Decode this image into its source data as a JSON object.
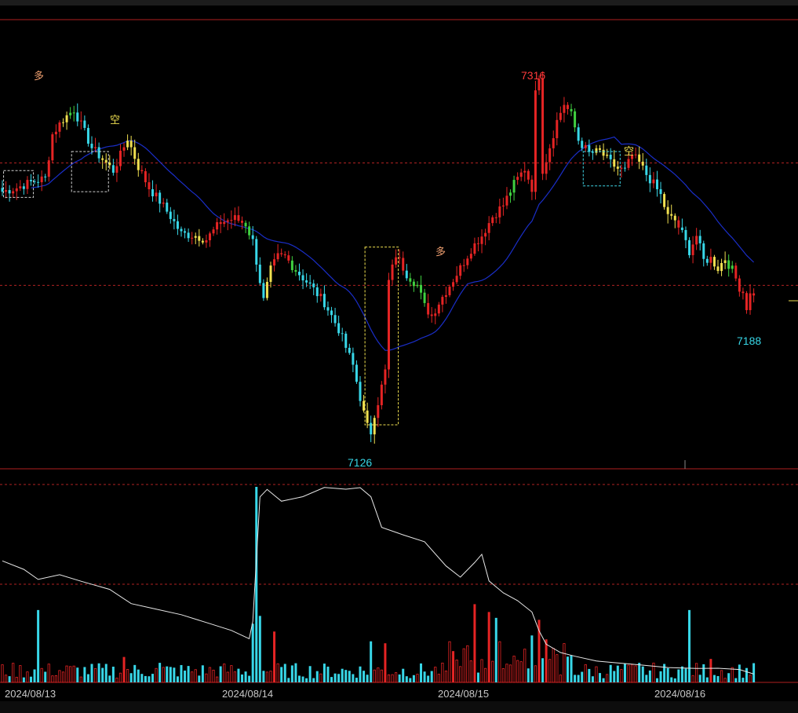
{
  "chart_data": {
    "type": "candlestick",
    "price_range": [
      7110,
      7345
    ],
    "reference_levels": [
      7270,
      7206
    ],
    "annotations": {
      "high": {
        "label": "7316",
        "value": 7316,
        "color": "#ff3b3b"
      },
      "low": {
        "label": "7126",
        "value": 7126,
        "color": "#37d6e6"
      },
      "last_low": {
        "label": "7188",
        "value": 7188,
        "color": "#37d6e6"
      }
    },
    "signals": [
      {
        "label": "多",
        "kind": "long",
        "value": 7302
      },
      {
        "label": "空",
        "kind": "short",
        "value": 7267
      },
      {
        "label": "多",
        "kind": "long",
        "value": 7243
      },
      {
        "label": "空",
        "kind": "short",
        "value": 7258
      }
    ],
    "x_labels": [
      "2024/08/13",
      "2024/08/14",
      "2024/08/15",
      "2024/08/16"
    ],
    "colors": {
      "up": "#e52424",
      "down": "#38d7e8",
      "green": "#40d040",
      "yellow": "#f0e050",
      "ma": "#1a2ec8",
      "ref": "#b22222",
      "frame": "#b02020",
      "box_white": "#d0d0d0",
      "box_yellow": "#f0e050",
      "box_cyan": "#40d8e8",
      "oi_line": "#e8e8e8"
    },
    "close_anchors": [
      [
        0,
        7255
      ],
      [
        4,
        7257
      ],
      [
        8,
        7260
      ],
      [
        12,
        7262
      ],
      [
        14,
        7285
      ],
      [
        17,
        7293
      ],
      [
        20,
        7298
      ],
      [
        22,
        7290
      ],
      [
        25,
        7278
      ],
      [
        28,
        7272
      ],
      [
        31,
        7266
      ],
      [
        33,
        7274
      ],
      [
        35,
        7283
      ],
      [
        38,
        7268
      ],
      [
        41,
        7257
      ],
      [
        44,
        7250
      ],
      [
        47,
        7242
      ],
      [
        50,
        7233
      ],
      [
        54,
        7232
      ],
      [
        57,
        7230
      ],
      [
        61,
        7239
      ],
      [
        65,
        7241
      ],
      [
        68,
        7238
      ],
      [
        70,
        7229
      ],
      [
        73,
        7198
      ],
      [
        75,
        7214
      ],
      [
        77,
        7221
      ],
      [
        79,
        7221
      ],
      [
        82,
        7214
      ],
      [
        86,
        7206
      ],
      [
        90,
        7197
      ],
      [
        94,
        7183
      ],
      [
        98,
        7164
      ],
      [
        101,
        7139
      ],
      [
        103,
        7133
      ],
      [
        105,
        7145
      ],
      [
        107,
        7161
      ],
      [
        108,
        7208
      ],
      [
        110,
        7222
      ],
      [
        113,
        7212
      ],
      [
        116,
        7206
      ],
      [
        118,
        7195
      ],
      [
        120,
        7190
      ],
      [
        122,
        7197
      ],
      [
        125,
        7206
      ],
      [
        128,
        7215
      ],
      [
        131,
        7225
      ],
      [
        134,
        7232
      ],
      [
        137,
        7242
      ],
      [
        140,
        7248
      ],
      [
        143,
        7259
      ],
      [
        146,
        7267
      ],
      [
        148,
        7257
      ],
      [
        150,
        7261
      ],
      [
        152,
        7272
      ],
      [
        155,
        7292
      ],
      [
        157,
        7301
      ],
      [
        159,
        7295
      ],
      [
        161,
        7282
      ],
      [
        164,
        7275
      ],
      [
        167,
        7276
      ],
      [
        170,
        7270
      ],
      [
        172,
        7267
      ],
      [
        174,
        7266
      ],
      [
        176,
        7274
      ],
      [
        178,
        7270
      ],
      [
        180,
        7264
      ],
      [
        182,
        7259
      ],
      [
        184,
        7253
      ],
      [
        186,
        7242
      ],
      [
        188,
        7240
      ],
      [
        190,
        7233
      ],
      [
        192,
        7224
      ],
      [
        194,
        7232
      ],
      [
        196,
        7219
      ],
      [
        198,
        7220
      ],
      [
        200,
        7215
      ],
      [
        202,
        7220
      ],
      [
        204,
        7214
      ],
      [
        206,
        7205
      ],
      [
        208,
        7200
      ],
      [
        210,
        7202
      ]
    ],
    "color_segments": [
      {
        "from": 14,
        "to": 16,
        "color": "up"
      },
      {
        "from": 17,
        "to": 18,
        "color": "yellow"
      },
      {
        "from": 19,
        "to": 20,
        "color": "green"
      },
      {
        "from": 28,
        "to": 30,
        "color": "yellow"
      },
      {
        "from": 35,
        "to": 38,
        "color": "yellow"
      },
      {
        "from": 39,
        "to": 41,
        "color": "up"
      },
      {
        "from": 54,
        "to": 56,
        "color": "yellow"
      },
      {
        "from": 58,
        "to": 67,
        "color": "up"
      },
      {
        "from": 68,
        "to": 69,
        "color": "green"
      },
      {
        "from": 74,
        "to": 75,
        "color": "yellow"
      },
      {
        "from": 76,
        "to": 80,
        "color": "up"
      },
      {
        "from": 81,
        "to": 82,
        "color": "green"
      },
      {
        "from": 101,
        "to": 102,
        "color": "yellow"
      },
      {
        "from": 104,
        "to": 104,
        "color": "yellow"
      },
      {
        "from": 105,
        "to": 112,
        "color": "up"
      },
      {
        "from": 114,
        "to": 115,
        "color": "green"
      },
      {
        "from": 116,
        "to": 118,
        "color": "green"
      },
      {
        "from": 119,
        "to": 140,
        "color": "up"
      },
      {
        "from": 142,
        "to": 143,
        "color": "green"
      },
      {
        "from": 144,
        "to": 156,
        "color": "up"
      },
      {
        "from": 157,
        "to": 158,
        "color": "up"
      },
      {
        "from": 159,
        "to": 160,
        "color": "green"
      },
      {
        "from": 166,
        "to": 169,
        "color": "yellow"
      },
      {
        "from": 171,
        "to": 172,
        "color": "yellow"
      },
      {
        "from": 178,
        "to": 179,
        "color": "yellow"
      },
      {
        "from": 185,
        "to": 188,
        "color": "yellow"
      },
      {
        "from": 189,
        "to": 189,
        "color": "up"
      },
      {
        "from": 199,
        "to": 202,
        "color": "yellow"
      },
      {
        "from": 203,
        "to": 204,
        "color": "green"
      },
      {
        "from": 205,
        "to": 206,
        "color": "up"
      },
      {
        "from": 207,
        "to": 210,
        "color": "up"
      }
    ],
    "open_interest": [
      [
        0,
        0.62
      ],
      [
        6,
        0.58
      ],
      [
        10,
        0.53
      ],
      [
        16,
        0.55
      ],
      [
        22,
        0.52
      ],
      [
        30,
        0.47
      ],
      [
        36,
        0.4
      ],
      [
        42,
        0.38
      ],
      [
        50,
        0.34
      ],
      [
        58,
        0.3
      ],
      [
        64,
        0.26
      ],
      [
        69,
        0.22
      ],
      [
        70,
        0.3
      ],
      [
        72,
        0.95
      ],
      [
        74,
        1.0
      ],
      [
        78,
        0.93
      ],
      [
        84,
        0.96
      ],
      [
        90,
        1.0
      ],
      [
        96,
        0.99
      ],
      [
        100,
        1.0
      ],
      [
        103,
        0.96
      ],
      [
        106,
        0.8
      ],
      [
        112,
        0.76
      ],
      [
        118,
        0.72
      ],
      [
        124,
        0.6
      ],
      [
        128,
        0.54
      ],
      [
        132,
        0.61
      ],
      [
        134,
        0.66
      ],
      [
        136,
        0.52
      ],
      [
        140,
        0.46
      ],
      [
        144,
        0.42
      ],
      [
        148,
        0.35
      ],
      [
        150,
        0.26
      ],
      [
        152,
        0.19
      ],
      [
        156,
        0.14
      ],
      [
        160,
        0.12
      ],
      [
        166,
        0.1
      ],
      [
        172,
        0.09
      ],
      [
        178,
        0.08
      ],
      [
        186,
        0.07
      ],
      [
        194,
        0.06
      ],
      [
        200,
        0.06
      ],
      [
        206,
        0.05
      ],
      [
        210,
        0.03
      ]
    ],
    "volume_spikes": [
      {
        "i": 10,
        "v": 0.37
      },
      {
        "i": 34,
        "v": 0.13
      },
      {
        "i": 44,
        "v": 0.1
      },
      {
        "i": 70,
        "v": 0.3
      },
      {
        "i": 71,
        "v": 1.0
      },
      {
        "i": 72,
        "v": 0.34
      },
      {
        "i": 76,
        "v": 0.26
      },
      {
        "i": 103,
        "v": 0.21
      },
      {
        "i": 107,
        "v": 0.2
      },
      {
        "i": 126,
        "v": 0.16
      },
      {
        "i": 132,
        "v": 0.4
      },
      {
        "i": 136,
        "v": 0.36
      },
      {
        "i": 138,
        "v": 0.33
      },
      {
        "i": 148,
        "v": 0.24
      },
      {
        "i": 150,
        "v": 0.32
      },
      {
        "i": 152,
        "v": 0.22
      },
      {
        "i": 192,
        "v": 0.37
      },
      {
        "i": 198,
        "v": 0.12
      },
      {
        "i": 178,
        "v": 0.1
      }
    ]
  }
}
